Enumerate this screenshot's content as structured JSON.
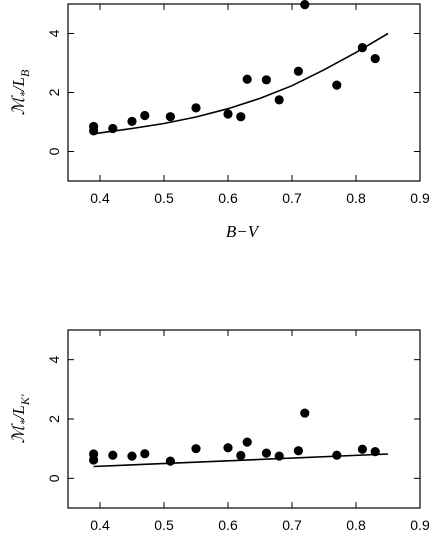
{
  "chart_data": [
    {
      "type": "scatter",
      "title": "",
      "xlabel": "B−V",
      "ylabel": {
        "main": "ℳ",
        "star": "*",
        "slash": "/L",
        "sub": "B"
      },
      "xlim": [
        0.35,
        0.9
      ],
      "ylim": [
        -1,
        5
      ],
      "xticks": [
        "0.4",
        "0.5",
        "0.6",
        "0.7",
        "0.8",
        "0.9"
      ],
      "xtick_values": [
        0.4,
        0.5,
        0.6,
        0.7,
        0.8,
        0.9
      ],
      "yticks": [
        "0",
        "2",
        "4"
      ],
      "ytick_values": [
        0,
        2,
        4
      ],
      "show_xtick_labels": true,
      "grid": false,
      "series": [
        {
          "type": "scatter",
          "x": [
            0.39,
            0.39,
            0.42,
            0.45,
            0.47,
            0.51,
            0.55,
            0.6,
            0.62,
            0.63,
            0.66,
            0.68,
            0.71,
            0.72,
            0.77,
            0.81,
            0.83
          ],
          "y": [
            0.85,
            0.7,
            0.78,
            1.02,
            1.22,
            1.18,
            1.48,
            1.27,
            1.18,
            2.45,
            2.43,
            1.75,
            2.72,
            4.98,
            2.25,
            3.52,
            3.15
          ]
        },
        {
          "type": "line",
          "x": [
            0.39,
            0.45,
            0.5,
            0.55,
            0.6,
            0.65,
            0.7,
            0.75,
            0.8,
            0.85
          ],
          "y": [
            0.6,
            0.78,
            0.95,
            1.17,
            1.45,
            1.8,
            2.23,
            2.77,
            3.36,
            4.0
          ]
        }
      ]
    },
    {
      "type": "scatter",
      "title": "",
      "xlabel": "",
      "ylabel": {
        "main": "ℳ",
        "star": "*",
        "slash": "/L",
        "sub": "K'"
      },
      "xlim": [
        0.35,
        0.9
      ],
      "ylim": [
        -1,
        5
      ],
      "xticks": [
        "0.4",
        "0.5",
        "0.6",
        "0.7",
        "0.8",
        "0.9"
      ],
      "xtick_values": [
        0.4,
        0.5,
        0.6,
        0.7,
        0.8,
        0.9
      ],
      "yticks": [
        "0",
        "2",
        "4"
      ],
      "ytick_values": [
        0,
        2,
        4
      ],
      "show_xtick_labels": true,
      "grid": false,
      "series": [
        {
          "type": "scatter",
          "x": [
            0.39,
            0.39,
            0.42,
            0.45,
            0.47,
            0.51,
            0.55,
            0.6,
            0.62,
            0.63,
            0.66,
            0.68,
            0.71,
            0.72,
            0.77,
            0.81,
            0.83
          ],
          "y": [
            0.82,
            0.62,
            0.78,
            0.75,
            0.83,
            0.58,
            1.0,
            1.03,
            0.77,
            1.22,
            0.85,
            0.75,
            0.93,
            2.2,
            0.78,
            0.98,
            0.9
          ]
        },
        {
          "type": "line",
          "x": [
            0.39,
            0.85
          ],
          "y": [
            0.4,
            0.82
          ]
        }
      ]
    }
  ]
}
